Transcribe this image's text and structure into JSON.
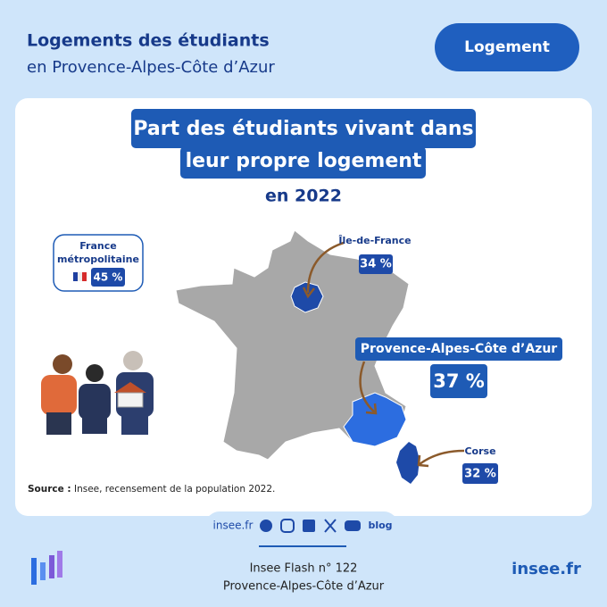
{
  "header": {
    "title": "Logements des étudiants",
    "subtitle": "en Provence-Alpes-Côte d’Azur",
    "tag": "Logement"
  },
  "card": {
    "title_line1": "Part des étudiants vivant dans",
    "title_line2": "leur propre logement",
    "year": "en 2022",
    "national": {
      "label_line1": "France",
      "label_line2": "métropolitaine",
      "value": "45 %"
    },
    "regions": [
      {
        "name": "Île-de-France",
        "value": "34 %"
      },
      {
        "name": "Provence-Alpes-Côte d’Azur",
        "value": "37 %"
      },
      {
        "name": "Corse",
        "value": "32 %"
      }
    ],
    "source_label": "Source :",
    "source_text": " Insee, recensement de la population 2022."
  },
  "social": {
    "site": "insee.fr",
    "blog": "blog"
  },
  "footer": {
    "line1": "Insee Flash n° 122",
    "line2": "Provence-Alpes-Côte d’Azur",
    "brand": "insee.fr"
  }
}
